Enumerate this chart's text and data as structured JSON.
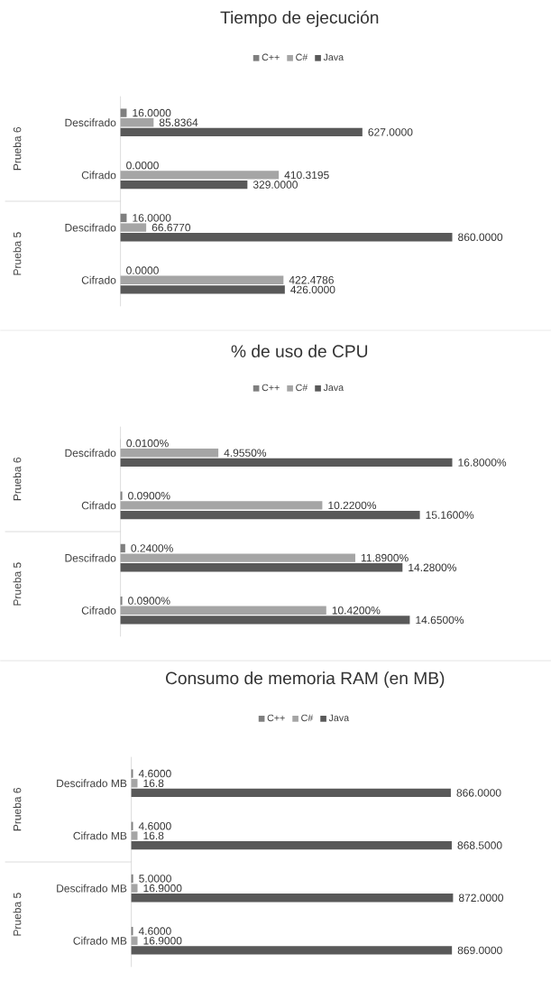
{
  "chart_data": [
    {
      "type": "bar",
      "orientation": "horizontal",
      "title": "Tiempo de ejecución",
      "legend": "top",
      "categories": [
        "Descifrado",
        "Cifrado",
        "Descifrado",
        "Cifrado"
      ],
      "annotations": [
        "Prueba 6",
        "Prueba 5"
      ],
      "series": [
        {
          "name": "C++",
          "color": "#7f7f7f",
          "values": [
            16,
            0,
            16,
            0
          ],
          "value_labels": [
            "16.0000",
            "0.0000",
            "16.0000",
            "0.0000"
          ]
        },
        {
          "name": "C#",
          "color": "#a5a5a5",
          "values": [
            85.8364,
            410.3195,
            66.677,
            422.4786
          ],
          "value_labels": [
            "85.8364",
            "410.3195",
            "66.6770",
            "422.4786"
          ]
        },
        {
          "name": "Java",
          "color": "#595959",
          "values": [
            627,
            329,
            860,
            426
          ],
          "value_labels": [
            "627.0000",
            "329.0000",
            "860.0000",
            "426.0000"
          ]
        }
      ]
    },
    {
      "type": "bar",
      "orientation": "horizontal",
      "title": "% de uso de CPU",
      "legend": "top",
      "categories": [
        "Descifrado",
        "Cifrado",
        "Descifrado",
        "Cifrado"
      ],
      "annotations": [
        "Prueba 6",
        "Prueba 5"
      ],
      "series": [
        {
          "name": "C++",
          "color": "#7f7f7f",
          "values": [
            0.01,
            0.09,
            0.24,
            0.09
          ],
          "value_labels": [
            "0.0100%",
            "0.0900%",
            "0.2400%",
            "0.0900%"
          ]
        },
        {
          "name": "C#",
          "color": "#a5a5a5",
          "values": [
            4.955,
            10.22,
            11.89,
            10.42
          ],
          "value_labels": [
            "4.9550%",
            "10.2200%",
            "11.8900%",
            "10.4200%"
          ]
        },
        {
          "name": "Java",
          "color": "#595959",
          "values": [
            16.8,
            15.16,
            14.28,
            14.65
          ],
          "value_labels": [
            "16.8000%",
            "15.1600%",
            "14.2800%",
            "14.6500%"
          ]
        }
      ]
    },
    {
      "type": "bar",
      "orientation": "horizontal",
      "title": "Consumo de memoria RAM (en MB)",
      "legend": "top",
      "categories": [
        "Descifrado MB",
        "Cifrado MB",
        "Descifrado MB",
        "Cifrado MB"
      ],
      "annotations": [
        "Prueba 6",
        "Prueba 5"
      ],
      "series": [
        {
          "name": "C++",
          "color": "#7f7f7f",
          "values": [
            4.6,
            4.6,
            5,
            4.6
          ],
          "value_labels": [
            "4.6000",
            "4.6000",
            "5.0000",
            "4.6000"
          ]
        },
        {
          "name": "C#",
          "color": "#a5a5a5",
          "values": [
            16.8,
            16.8,
            16.9,
            16.9
          ],
          "value_labels": [
            "16.8",
            "16.8",
            "16.9000",
            "16.9000"
          ]
        },
        {
          "name": "Java",
          "color": "#595959",
          "values": [
            866,
            868.5,
            872,
            869
          ],
          "value_labels": [
            "866.0000",
            "868.5000",
            "872.0000",
            "869.0000"
          ]
        }
      ]
    }
  ]
}
